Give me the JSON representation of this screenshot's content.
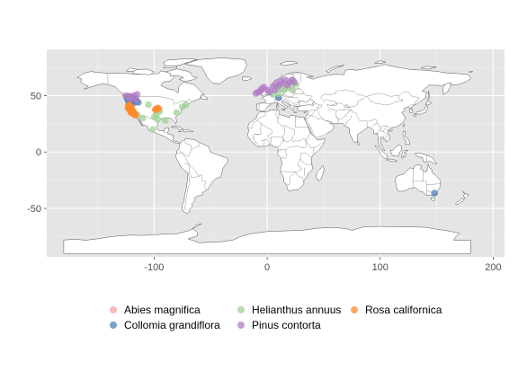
{
  "chart_data": {
    "type": "scatter",
    "title": "",
    "xlabel": "",
    "ylabel": "",
    "xlim": [
      -195,
      210
    ],
    "ylim": [
      -93,
      91
    ],
    "x_ticks": [
      -100,
      0,
      100,
      200
    ],
    "y_ticks": [
      -50,
      0,
      50
    ],
    "x_tick_labels": [
      "-100",
      "0",
      "100",
      "200"
    ],
    "y_tick_labels": [
      "-50",
      "0",
      "50"
    ],
    "grid": true,
    "panel_background": "#e5e5e5",
    "land_fill": "#ffffff",
    "legend_position": "bottom",
    "series": [
      {
        "name": "Abies magnifica",
        "color": "#f4a3a0",
        "points": [
          [
            -121.5,
            40.3
          ],
          [
            -122.0,
            39.8
          ],
          [
            -121.2,
            39.3
          ],
          [
            -120.8,
            38.8
          ],
          [
            -120.5,
            38.3
          ],
          [
            -120.0,
            37.8
          ],
          [
            -119.6,
            37.3
          ],
          [
            -119.3,
            36.8
          ],
          [
            -118.9,
            36.3
          ],
          [
            -123.0,
            41.5
          ],
          [
            -122.5,
            42.0
          ],
          [
            -122.2,
            41.0
          ]
        ]
      },
      {
        "name": "Collomia grandiflora",
        "color": "#4f7fba",
        "points": [
          [
            -123.5,
            47.0
          ],
          [
            -122.5,
            46.0
          ],
          [
            -121.0,
            45.5
          ],
          [
            -120.0,
            44.5
          ],
          [
            -117.5,
            46.5
          ],
          [
            -116.5,
            47.5
          ],
          [
            -119.5,
            48.5
          ],
          [
            -124.0,
            48.0
          ],
          [
            -118.0,
            43.5
          ],
          [
            -122.0,
            44.0
          ],
          [
            -120.5,
            47.5
          ],
          [
            -115.5,
            45.0
          ],
          [
            -121.5,
            49.0
          ],
          [
            -114.0,
            44.0
          ],
          [
            -122.8,
            45.3
          ],
          [
            148.0,
            -36.5
          ],
          [
            10.0,
            48.0
          ]
        ]
      },
      {
        "name": "Helianthus annuus",
        "color": "#9fd195",
        "points": [
          [
            -100.0,
            31.0
          ],
          [
            -97.0,
            29.0
          ],
          [
            -98.0,
            33.0
          ],
          [
            -101.0,
            20.0
          ],
          [
            -105.0,
            42.0
          ],
          [
            -90.0,
            28.0
          ],
          [
            -75.0,
            40.0
          ],
          [
            -80.0,
            35.0
          ],
          [
            -95.0,
            36.0
          ],
          [
            -115.0,
            33.0
          ],
          [
            -110.0,
            30.0
          ],
          [
            -72.0,
            42.0
          ],
          [
            15.0,
            55.0
          ],
          [
            20.0,
            62.0
          ],
          [
            25.0,
            60.0
          ],
          [
            10.0,
            52.0
          ],
          [
            12.0,
            58.0
          ],
          [
            5.0,
            51.0
          ],
          [
            22.0,
            55.0
          ],
          [
            18.0,
            60.0
          ]
        ]
      },
      {
        "name": "Pinus contorta",
        "color": "#b07cc5",
        "points": [
          [
            -120.0,
            48.0
          ],
          [
            -122.0,
            49.5
          ],
          [
            -118.0,
            50.0
          ],
          [
            -115.0,
            51.0
          ],
          [
            -125.0,
            50.0
          ],
          [
            -116.0,
            46.0
          ],
          [
            -122.0,
            47.0
          ],
          [
            -10.0,
            52.0
          ],
          [
            -8.0,
            53.0
          ],
          [
            -5.0,
            56.0
          ],
          [
            -3.0,
            57.5
          ],
          [
            0.0,
            55.0
          ],
          [
            5.0,
            58.0
          ],
          [
            8.0,
            61.0
          ],
          [
            10.0,
            59.0
          ],
          [
            12.0,
            63.0
          ],
          [
            14.0,
            61.0
          ],
          [
            16.0,
            64.0
          ],
          [
            18.0,
            59.0
          ],
          [
            20.0,
            62.0
          ],
          [
            22.0,
            64.0
          ],
          [
            7.0,
            55.0
          ],
          [
            2.0,
            53.0
          ],
          [
            -6.0,
            54.0
          ],
          [
            24.0,
            62.0
          ]
        ]
      },
      {
        "name": "Rosa californica",
        "color": "#ff8a2a",
        "points": [
          [
            -122.0,
            39.0
          ],
          [
            -121.0,
            38.0
          ],
          [
            -120.5,
            37.0
          ],
          [
            -119.8,
            36.0
          ],
          [
            -119.0,
            35.0
          ],
          [
            -118.2,
            34.0
          ],
          [
            -117.5,
            33.5
          ],
          [
            -122.5,
            40.5
          ],
          [
            -121.8,
            41.0
          ],
          [
            -120.0,
            36.5
          ],
          [
            -118.5,
            34.5
          ],
          [
            -117.0,
            33.0
          ],
          [
            -116.5,
            32.8
          ],
          [
            -123.0,
            40.0
          ],
          [
            -121.5,
            37.5
          ],
          [
            -120.5,
            35.0
          ],
          [
            -122.2,
            38.2
          ],
          [
            -119.5,
            34.8
          ],
          [
            -122.0,
            41.8
          ],
          [
            -121.0,
            40.0
          ],
          [
            -119.0,
            36.5
          ],
          [
            -120.0,
            39.5
          ],
          [
            -118.0,
            35.5
          ],
          [
            -123.0,
            39.0
          ],
          [
            -117.8,
            34.0
          ],
          [
            -121.0,
            39.3
          ],
          [
            -122.5,
            38.5
          ],
          [
            -99.0,
            37.5
          ],
          [
            -97.0,
            39.0
          ],
          [
            -98.5,
            38.0
          ],
          [
            -96.0,
            38.5
          ]
        ]
      }
    ]
  }
}
